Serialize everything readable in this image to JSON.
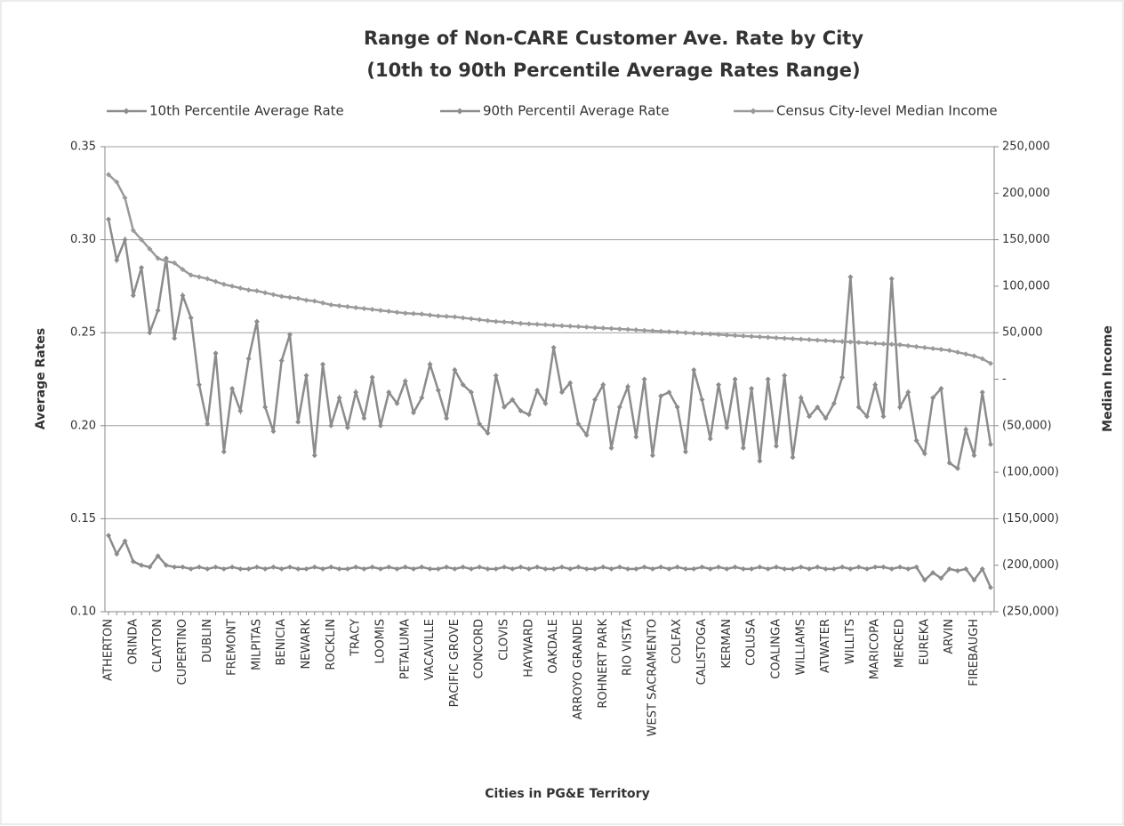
{
  "chart_data": {
    "type": "line",
    "title": [
      "Range of Non-CARE Customer Ave. Rate by City",
      "(10th to 90th Percentile  Average Rates Range)"
    ],
    "x_label": "Cities in PG&E Territory",
    "y_label": "Average Rates",
    "y2_label": "Median Income",
    "categories": [
      "ATHERTON",
      null,
      null,
      "ORINDA",
      null,
      null,
      "CLAYTON",
      null,
      null,
      "CUPERTINO",
      null,
      null,
      "DUBLIN",
      null,
      null,
      "FREMONT",
      null,
      null,
      "MILPITAS",
      null,
      null,
      "BENICIA",
      null,
      null,
      "NEWARK",
      null,
      null,
      "ROCKLIN",
      null,
      null,
      "TRACY",
      null,
      null,
      "LOOMIS",
      null,
      null,
      "PETALUMA",
      null,
      null,
      "VACAVILLE",
      null,
      null,
      "PACIFIC GROVE",
      null,
      null,
      "CONCORD",
      null,
      null,
      "CLOVIS",
      null,
      null,
      "HAYWARD",
      null,
      null,
      "OAKDALE",
      null,
      null,
      "ARROYO GRANDE",
      null,
      null,
      "ROHNERT PARK",
      null,
      null,
      "RIO VISTA",
      null,
      null,
      "WEST SACRAMENTO",
      null,
      null,
      "COLFAX",
      null,
      null,
      "CALISTOGA",
      null,
      null,
      "KERMAN",
      null,
      null,
      "COLUSA",
      null,
      null,
      "COALINGA",
      null,
      null,
      "WILLIAMS",
      null,
      null,
      "ATWATER",
      null,
      null,
      "WILLITS",
      null,
      null,
      "MARICOPA",
      null,
      null,
      "MERCED",
      null,
      null,
      "EUREKA",
      null,
      null,
      "ARVIN",
      null,
      null,
      "FIREBAUGH",
      null,
      null
    ],
    "series": [
      {
        "name": "10th Percentile Average Rate",
        "color": "#8c8c8c",
        "axis": "y",
        "values": [
          0.141,
          0.131,
          0.138,
          0.127,
          0.125,
          0.124,
          0.13,
          0.125,
          0.124,
          0.124,
          0.123,
          0.124,
          0.123,
          0.124,
          0.123,
          0.124,
          0.123,
          0.123,
          0.124,
          0.123,
          0.124,
          0.123,
          0.124,
          0.123,
          0.123,
          0.124,
          0.123,
          0.124,
          0.123,
          0.123,
          0.124,
          0.123,
          0.124,
          0.123,
          0.124,
          0.123,
          0.124,
          0.123,
          0.124,
          0.123,
          0.123,
          0.124,
          0.123,
          0.124,
          0.123,
          0.124,
          0.123,
          0.123,
          0.124,
          0.123,
          0.124,
          0.123,
          0.124,
          0.123,
          0.123,
          0.124,
          0.123,
          0.124,
          0.123,
          0.123,
          0.124,
          0.123,
          0.124,
          0.123,
          0.123,
          0.124,
          0.123,
          0.124,
          0.123,
          0.124,
          0.123,
          0.123,
          0.124,
          0.123,
          0.124,
          0.123,
          0.124,
          0.123,
          0.123,
          0.124,
          0.123,
          0.124,
          0.123,
          0.123,
          0.124,
          0.123,
          0.124,
          0.123,
          0.123,
          0.124,
          0.123,
          0.124,
          0.123,
          0.124,
          0.124,
          0.123,
          0.124,
          0.123,
          0.124,
          0.117,
          0.121,
          0.118,
          0.123,
          0.122,
          0.123,
          0.117,
          0.123,
          0.113
        ]
      },
      {
        "name": "90th Percentil Average Rate",
        "color": "#8c8c8c",
        "axis": "y",
        "values": [
          0.311,
          0.289,
          0.3,
          0.27,
          0.285,
          0.25,
          0.262,
          0.29,
          0.247,
          0.27,
          0.258,
          0.222,
          0.201,
          0.239,
          0.186,
          0.22,
          0.208,
          0.236,
          0.256,
          0.21,
          0.197,
          0.235,
          0.249,
          0.202,
          0.227,
          0.184,
          0.233,
          0.2,
          0.215,
          0.199,
          0.218,
          0.204,
          0.226,
          0.2,
          0.218,
          0.212,
          0.224,
          0.207,
          0.215,
          0.233,
          0.219,
          0.204,
          0.23,
          0.222,
          0.218,
          0.201,
          0.196,
          0.227,
          0.21,
          0.214,
          0.208,
          0.206,
          0.219,
          0.212,
          0.242,
          0.218,
          0.223,
          0.201,
          0.195,
          0.214,
          0.222,
          0.188,
          0.21,
          0.221,
          0.194,
          0.225,
          0.184,
          0.216,
          0.218,
          0.21,
          0.186,
          0.23,
          0.214,
          0.193,
          0.222,
          0.199,
          0.225,
          0.188,
          0.22,
          0.181,
          0.225,
          0.189,
          0.227,
          0.183,
          0.215,
          0.205,
          0.21,
          0.204,
          0.212,
          0.226,
          0.28,
          0.21,
          0.205,
          0.222,
          0.205,
          0.279,
          0.21,
          0.218,
          0.192,
          0.185,
          0.215,
          0.22,
          0.18,
          0.177,
          0.198,
          0.184,
          0.218,
          0.19
        ]
      },
      {
        "name": "Census City-level Median Income",
        "color": "#9a9a9a",
        "axis": "y2",
        "values": [
          220000,
          212000,
          195000,
          160000,
          150000,
          140000,
          130000,
          127000,
          125000,
          118000,
          112000,
          110000,
          108000,
          105000,
          102000,
          100000,
          98000,
          96000,
          95000,
          93000,
          91000,
          89000,
          88000,
          87000,
          85000,
          84000,
          82000,
          80000,
          79000,
          78000,
          77000,
          76000,
          75000,
          74000,
          73000,
          72000,
          71000,
          70500,
          70000,
          69000,
          68000,
          67500,
          67000,
          66000,
          65000,
          64000,
          63000,
          62000,
          61500,
          61000,
          60000,
          59500,
          59000,
          58500,
          58000,
          57500,
          57000,
          56500,
          56000,
          55500,
          55000,
          54500,
          54000,
          53500,
          53000,
          52500,
          52000,
          51500,
          51000,
          50500,
          50000,
          49500,
          49000,
          48500,
          48000,
          47500,
          47000,
          46500,
          46000,
          45500,
          45000,
          44500,
          44000,
          43500,
          43000,
          42500,
          42000,
          41500,
          41000,
          40500,
          40000,
          39500,
          39000,
          38500,
          38000,
          37500,
          37000,
          36000,
          35000,
          34000,
          33000,
          32000,
          31000,
          29000,
          27000,
          25000,
          22000,
          17000
        ]
      }
    ],
    "ylim": [
      0.1,
      0.35
    ],
    "yticks": [
      {
        "value": 0.1,
        "label": "0.10"
      },
      0.15,
      {
        "value": 0.2,
        "label": "0.20"
      },
      0.25,
      {
        "value": 0.3,
        "label": "0.30"
      },
      0.35
    ],
    "y2lim": [
      -250000,
      250000
    ],
    "y2ticks": [
      {
        "value": -250000,
        "label": "(250,000)"
      },
      {
        "value": -200000,
        "label": "(200,000)"
      },
      {
        "value": -150000,
        "label": "(150,000)"
      },
      {
        "value": -100000,
        "label": "(100,000)"
      },
      {
        "value": -50000,
        "label": "(50,000)"
      },
      {
        "value": 0,
        "label": "-"
      },
      {
        "value": 50000,
        "label": "50,000"
      },
      {
        "value": 100000,
        "label": "100,000"
      },
      {
        "value": 150000,
        "label": "150,000"
      },
      {
        "value": 200000,
        "label": "200,000"
      },
      {
        "value": 250000,
        "label": "250,000"
      }
    ],
    "grid": true,
    "legend": "top"
  }
}
